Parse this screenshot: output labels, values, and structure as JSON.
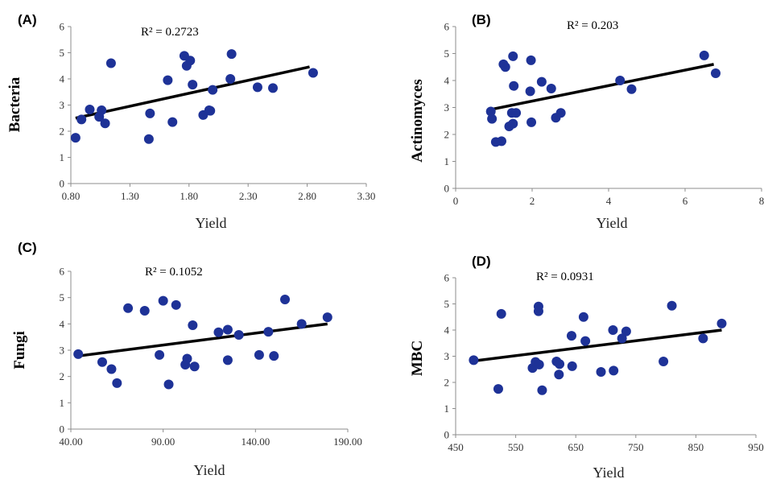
{
  "chart_data": [
    {
      "type": "scatter",
      "panel": "(A)",
      "r2": "R² = 0.2723",
      "xlabel": "Yield",
      "ylabel": "Bacteria",
      "xlim": [
        0.8,
        3.3
      ],
      "ylim": [
        0,
        6
      ],
      "xticks": [
        "0.80",
        "1.30",
        "1.80",
        "2.30",
        "2.80",
        "3.30"
      ],
      "yticks": [
        "0",
        "1",
        "2",
        "3",
        "4",
        "5",
        "6"
      ],
      "trend": [
        [
          0.84,
          2.5
        ],
        [
          2.82,
          4.46
        ]
      ],
      "x": [
        0.84,
        0.89,
        0.96,
        1.04,
        1.06,
        1.09,
        1.14,
        1.46,
        1.47,
        1.62,
        1.66,
        1.76,
        1.78,
        1.81,
        1.83,
        1.92,
        1.97,
        1.98,
        2.0,
        2.15,
        2.16,
        2.38,
        2.51,
        2.85
      ],
      "y": [
        1.75,
        2.45,
        2.83,
        2.55,
        2.8,
        2.3,
        4.6,
        1.7,
        2.68,
        3.95,
        2.35,
        4.88,
        4.5,
        4.7,
        3.78,
        2.62,
        2.8,
        2.78,
        3.58,
        4.0,
        4.95,
        3.68,
        3.65,
        4.23
      ],
      "grid": false
    },
    {
      "type": "scatter",
      "panel": "(B)",
      "r2": "R² = 0.203",
      "xlabel": "Yield",
      "ylabel": "Actinomyces",
      "xlim": [
        0,
        8
      ],
      "ylim": [
        0,
        6
      ],
      "xticks": [
        "0",
        "2",
        "4",
        "6",
        "8"
      ],
      "yticks": [
        "0",
        "1",
        "2",
        "3",
        "4",
        "5",
        "6"
      ],
      "trend": [
        [
          0.9,
          2.92
        ],
        [
          6.75,
          4.6
        ]
      ],
      "x": [
        0.92,
        0.95,
        1.05,
        1.2,
        1.25,
        1.3,
        1.4,
        1.47,
        1.5,
        1.5,
        1.52,
        1.58,
        1.95,
        1.97,
        1.98,
        2.25,
        2.5,
        2.62,
        2.75,
        4.3,
        4.6,
        6.5,
        6.8
      ],
      "y": [
        2.85,
        2.58,
        1.72,
        1.75,
        4.6,
        4.5,
        2.3,
        2.8,
        2.4,
        4.9,
        3.8,
        2.8,
        3.6,
        4.75,
        2.45,
        3.95,
        3.7,
        2.62,
        2.8,
        4.0,
        3.68,
        4.93,
        4.27
      ],
      "grid": false
    },
    {
      "type": "scatter",
      "panel": "(C)",
      "r2": "R² = 0.1052",
      "xlabel": "Yield",
      "ylabel": "Fungi",
      "xlim": [
        40,
        190
      ],
      "ylim": [
        0,
        6
      ],
      "xticks": [
        "40.00",
        "90.00",
        "140.00",
        "190.00"
      ],
      "yticks": [
        "0",
        "1",
        "2",
        "3",
        "4",
        "5",
        "6"
      ],
      "trend": [
        [
          44,
          2.78
        ],
        [
          179,
          4.0
        ]
      ],
      "x": [
        44,
        57,
        62,
        65,
        71,
        80,
        88,
        90,
        93,
        97,
        102,
        103,
        106,
        107,
        120,
        125,
        125,
        131,
        142,
        147,
        150,
        156,
        165,
        179
      ],
      "y": [
        2.85,
        2.55,
        2.28,
        1.75,
        4.6,
        4.5,
        2.82,
        4.88,
        1.7,
        4.72,
        2.45,
        2.68,
        3.95,
        2.38,
        3.68,
        3.78,
        2.62,
        3.58,
        2.82,
        3.7,
        2.78,
        4.93,
        4.0,
        4.25
      ],
      "grid": false
    },
    {
      "type": "scatter",
      "panel": "(D)",
      "r2": "R² = 0.0931",
      "xlabel": "Yield",
      "ylabel": "MBC",
      "xlim": [
        450,
        950
      ],
      "ylim": [
        0,
        6
      ],
      "xticks": [
        "450",
        "550",
        "650",
        "750",
        "850",
        "950"
      ],
      "yticks": [
        "0",
        "1",
        "2",
        "3",
        "4",
        "5",
        "6"
      ],
      "trend": [
        [
          480,
          2.82
        ],
        [
          893,
          4.0
        ]
      ],
      "x": [
        480,
        521,
        526,
        578,
        583,
        588,
        588,
        589,
        594,
        618,
        622,
        623,
        643,
        644,
        663,
        666,
        692,
        712,
        713,
        727,
        734,
        796,
        810,
        862,
        893
      ],
      "y": [
        2.85,
        1.75,
        4.62,
        2.55,
        2.78,
        4.9,
        4.72,
        2.68,
        1.7,
        2.8,
        2.3,
        2.7,
        3.78,
        2.62,
        4.5,
        3.58,
        2.4,
        4.0,
        2.45,
        3.68,
        3.95,
        2.8,
        4.93,
        3.68,
        4.25
      ],
      "grid": false
    }
  ]
}
